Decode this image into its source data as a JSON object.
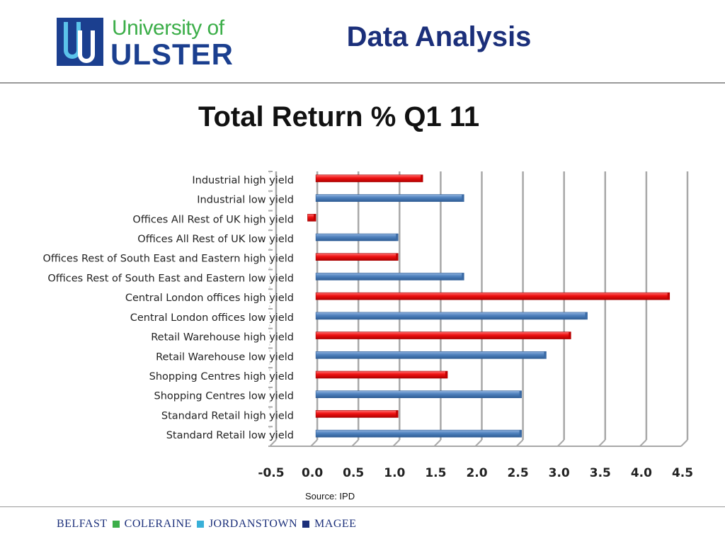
{
  "header": {
    "logo_line1": "University of",
    "logo_line2": "ULSTER",
    "title": "Data Analysis"
  },
  "colors": {
    "high_yield": "#ee1111",
    "low_yield": "#4f81bd",
    "brand_blue": "#1b2f7a",
    "brand_green": "#3cae49",
    "brand_cyan": "#39b0d8"
  },
  "chart_data": {
    "type": "bar",
    "orientation": "horizontal",
    "title": "Total Return % Q1 11",
    "categories": [
      "Industrial high yield",
      "Industrial low yield",
      "Offices All Rest of UK high yield",
      "Offices All Rest of UK low yield",
      "Offices Rest of South East and Eastern high yield",
      "Offices Rest of South East and Eastern low yield",
      "Central London offices high yield",
      "Central London offices low yield",
      "Retail Warehouse high yield",
      "Retail Warehouse low yield",
      "Shopping Centres high yield",
      "Shopping Centres low yield",
      "Standard Retail high yield",
      "Standard Retail low yield"
    ],
    "values": [
      1.3,
      1.8,
      -0.1,
      1.0,
      1.0,
      1.8,
      4.3,
      3.3,
      3.1,
      2.8,
      1.6,
      2.5,
      1.0,
      2.5
    ],
    "bar_types": [
      "high",
      "low",
      "high",
      "low",
      "high",
      "low",
      "high",
      "low",
      "high",
      "low",
      "high",
      "low",
      "high",
      "low"
    ],
    "xlim": [
      -0.5,
      4.5
    ],
    "xticks": [
      "-0.5",
      "0.0",
      "0.5",
      "1.0",
      "1.5",
      "2.0",
      "2.5",
      "3.0",
      "3.5",
      "4.0",
      "4.5"
    ],
    "grid": true,
    "legend": "none"
  },
  "source": "Source: IPD",
  "footer": {
    "campuses": [
      "BELFAST",
      "COLERAINE",
      "JORDANSTOWN",
      "MAGEE"
    ],
    "separator_colors": [
      "#3cae49",
      "#39b0d8",
      "#1b2f7a"
    ]
  }
}
